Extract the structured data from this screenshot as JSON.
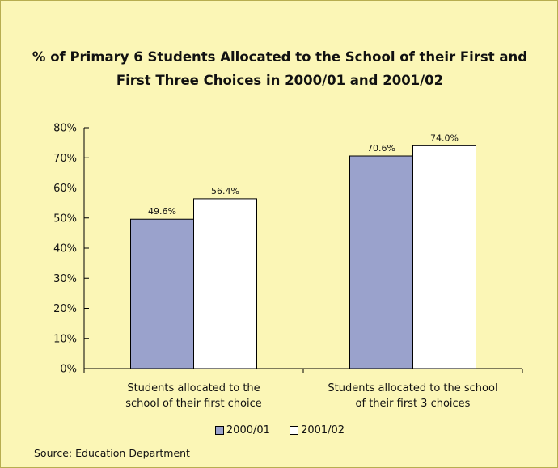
{
  "chart_data": {
    "type": "bar",
    "title": "% of Primary 6 Students Allocated to the School of their First and First Three Choices in 2000/01 and 2001/02",
    "categories": [
      [
        "Students allocated to the",
        "school of their first choice"
      ],
      [
        "Students allocated to the school",
        "of their first 3 choices"
      ]
    ],
    "series": [
      {
        "name": "2000/01",
        "values": [
          49.6,
          70.6
        ],
        "labels": [
          "49.6%",
          "70.6%"
        ],
        "color": "#9aa2cc"
      },
      {
        "name": "2001/02",
        "values": [
          56.4,
          74.0
        ],
        "labels": [
          "56.4%",
          "74.0%"
        ],
        "color": "#ffffff"
      }
    ],
    "ylim": [
      0,
      80
    ],
    "yticks": [
      "0%",
      "10%",
      "20%",
      "30%",
      "40%",
      "50%",
      "60%",
      "70%",
      "80%"
    ],
    "xlabel": "",
    "ylabel": "",
    "grid": false,
    "legend_position": "bottom"
  },
  "source": "Source: Education Department",
  "colors": {
    "background": "#fbf6b6",
    "border": "#b7ad50"
  }
}
